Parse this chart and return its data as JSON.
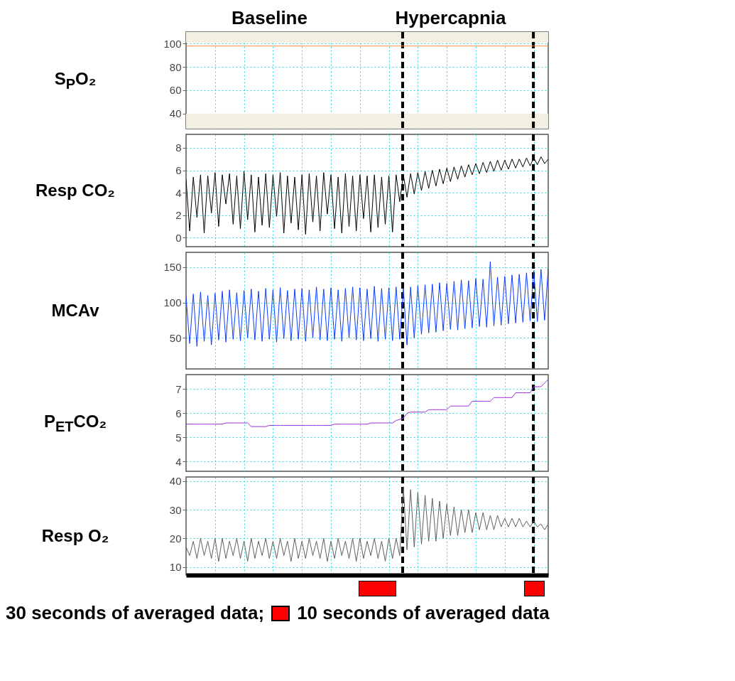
{
  "chart_data": [
    {
      "type": "line",
      "ylabel": "S$_{P}$O₂",
      "annotations": [
        "Baseline",
        "Hypercapnia"
      ],
      "categories": [
        null,
        null,
        null,
        null,
        null,
        null,
        null,
        null,
        null,
        null,
        null,
        null,
        null,
        null,
        null,
        null,
        null,
        null,
        null,
        null,
        null,
        null,
        null,
        null,
        null,
        null,
        null,
        null,
        null,
        null,
        null,
        null,
        null,
        null,
        null,
        null,
        null,
        null,
        null,
        null,
        null,
        null,
        null,
        null,
        null,
        null,
        null,
        null,
        null,
        null,
        null,
        null,
        null,
        null,
        null,
        null,
        null,
        null,
        null,
        null,
        null,
        null,
        null,
        null,
        null,
        null,
        null,
        null,
        null,
        null,
        null,
        null,
        null,
        null,
        null,
        null,
        null,
        null,
        null,
        null,
        null,
        null,
        null,
        null,
        null,
        null,
        null,
        null,
        null,
        null,
        null,
        null,
        null,
        null,
        null,
        null,
        null,
        null,
        null,
        null,
        null
      ],
      "series": [
        {
          "color": "#ff8c40",
          "values": [
            98,
            98,
            98,
            98,
            98,
            98,
            98,
            98,
            98,
            98,
            98,
            98,
            98,
            98,
            98,
            98,
            98,
            98,
            98,
            98,
            98,
            98,
            98,
            98,
            98,
            98,
            98,
            98,
            98,
            98,
            98,
            98,
            98,
            98,
            98,
            98,
            98,
            98,
            98,
            98,
            98,
            98,
            98,
            98,
            98,
            98,
            98,
            98,
            98,
            98,
            98,
            98,
            98,
            98,
            98,
            98,
            98,
            98,
            98,
            98,
            98,
            98,
            98,
            98,
            98,
            98,
            98,
            98,
            98,
            98,
            98,
            98,
            98,
            98,
            98,
            98,
            98,
            98,
            98,
            98,
            98,
            98,
            98,
            98,
            98,
            98,
            98,
            98,
            98,
            98,
            98,
            98,
            98,
            98,
            98,
            98,
            98,
            98,
            98,
            98,
            98
          ]
        }
      ],
      "ylim": [
        27,
        110
      ],
      "yticks": [
        40,
        60,
        80,
        100
      ],
      "grid": true,
      "tick_labels": "y",
      "bands": [
        {
          "axis": "y",
          "from": 101,
          "to": 110,
          "color": "#f3efe2"
        },
        {
          "axis": "y",
          "from": 27,
          "to": 40,
          "color": "#f3efe2"
        }
      ]
    },
    {
      "type": "line",
      "ylabel": "Resp CO₂",
      "categories": [
        null,
        null,
        null,
        null,
        null,
        null,
        null,
        null,
        null,
        null,
        null,
        null,
        null,
        null,
        null,
        null,
        null,
        null,
        null,
        null,
        null,
        null,
        null,
        null,
        null,
        null,
        null,
        null,
        null,
        null,
        null,
        null,
        null,
        null,
        null,
        null,
        null,
        null,
        null,
        null,
        null,
        null,
        null,
        null,
        null,
        null,
        null,
        null,
        null,
        null,
        null,
        null,
        null,
        null,
        null,
        null,
        null,
        null,
        null,
        null,
        null,
        null,
        null,
        null,
        null,
        null,
        null,
        null,
        null,
        null,
        null,
        null,
        null,
        null,
        null,
        null,
        null,
        null,
        null,
        null,
        null,
        null,
        null,
        null,
        null,
        null,
        null,
        null,
        null,
        null,
        null,
        null,
        null,
        null,
        null,
        null,
        null,
        null,
        null,
        null,
        null
      ],
      "series": [
        {
          "color": "#000000",
          "values": [
            5.2,
            0.6,
            5.4,
            1.8,
            5.6,
            0.4,
            5.5,
            2.2,
            5.8,
            1.0,
            5.6,
            3.0,
            5.7,
            1.2,
            5.5,
            0.8,
            5.9,
            1.6,
            5.6,
            0.5,
            5.4,
            1.1,
            5.7,
            0.9,
            5.6,
            1.9,
            5.8,
            0.4,
            5.5,
            1.3,
            5.4,
            0.7,
            5.6,
            0.3,
            5.7,
            1.4,
            5.5,
            0.6,
            5.8,
            2.1,
            5.6,
            0.8,
            5.4,
            0.4,
            5.7,
            1.0,
            5.5,
            0.6,
            5.6,
            1.7,
            5.5,
            0.5,
            5.6,
            0.9,
            5.4,
            1.2,
            5.5,
            0.5,
            5.6,
            3.2,
            5.6,
            3.6,
            5.7,
            3.9,
            5.8,
            4.2,
            5.9,
            4.4,
            6.0,
            4.6,
            6.1,
            4.8,
            6.2,
            5.0,
            6.3,
            5.2,
            6.4,
            5.4,
            6.5,
            5.6,
            6.6,
            5.7,
            6.7,
            5.8,
            6.8,
            5.9,
            6.9,
            6.0,
            6.9,
            6.1,
            7.0,
            6.2,
            7.0,
            6.3,
            7.1,
            6.4,
            7.1,
            6.5,
            7.2,
            6.6,
            7.0
          ]
        }
      ],
      "ylim": [
        -0.8,
        9.2
      ],
      "yticks": [
        0,
        2,
        4,
        6,
        8
      ],
      "grid": true,
      "tick_labels": "y"
    },
    {
      "type": "line",
      "ylabel": "MCAv",
      "categories": [
        null,
        null,
        null,
        null,
        null,
        null,
        null,
        null,
        null,
        null,
        null,
        null,
        null,
        null,
        null,
        null,
        null,
        null,
        null,
        null,
        null,
        null,
        null,
        null,
        null,
        null,
        null,
        null,
        null,
        null,
        null,
        null,
        null,
        null,
        null,
        null,
        null,
        null,
        null,
        null,
        null,
        null,
        null,
        null,
        null,
        null,
        null,
        null,
        null,
        null,
        null,
        null,
        null,
        null,
        null,
        null,
        null,
        null,
        null,
        null,
        null,
        null,
        null,
        null,
        null,
        null,
        null,
        null,
        null,
        null,
        null,
        null,
        null,
        null,
        null,
        null,
        null,
        null,
        null,
        null,
        null,
        null,
        null,
        null,
        null,
        null,
        null,
        null,
        null,
        null,
        null,
        null,
        null,
        null,
        null,
        null,
        null,
        null,
        null,
        null,
        null
      ],
      "series": [
        {
          "color": "#0a3cff",
          "values": [
            108,
            42,
            112,
            38,
            115,
            45,
            110,
            40,
            113,
            47,
            116,
            44,
            118,
            48,
            114,
            46,
            117,
            50,
            119,
            47,
            116,
            45,
            120,
            48,
            118,
            44,
            121,
            49,
            117,
            46,
            119,
            48,
            120,
            45,
            118,
            50,
            122,
            47,
            119,
            46,
            121,
            48,
            118,
            45,
            120,
            50,
            122,
            47,
            121,
            46,
            119,
            49,
            123,
            45,
            120,
            48,
            121,
            46,
            122,
            48,
            120,
            40,
            122,
            50,
            124,
            55,
            125,
            57,
            126,
            58,
            128,
            60,
            127,
            62,
            130,
            61,
            132,
            63,
            131,
            64,
            134,
            66,
            133,
            65,
            158,
            67,
            136,
            68,
            137,
            70,
            139,
            71,
            140,
            72,
            142,
            74,
            145,
            73,
            147,
            75,
            148
          ]
        }
      ],
      "ylim": [
        6,
        171
      ],
      "yticks": [
        50,
        100,
        150
      ],
      "grid": true,
      "tick_labels": "y"
    },
    {
      "type": "line",
      "ylabel": "P$_{ET}$CO₂",
      "categories": [
        null,
        null,
        null,
        null,
        null,
        null,
        null,
        null,
        null,
        null,
        null,
        null,
        null,
        null,
        null,
        null,
        null,
        null,
        null,
        null,
        null,
        null,
        null,
        null,
        null,
        null,
        null,
        null,
        null,
        null,
        null,
        null,
        null,
        null,
        null,
        null,
        null,
        null,
        null,
        null,
        null,
        null,
        null,
        null,
        null,
        null,
        null,
        null,
        null,
        null,
        null,
        null,
        null,
        null,
        null,
        null,
        null,
        null,
        null,
        null,
        null,
        null,
        null,
        null,
        null,
        null,
        null,
        null,
        null,
        null,
        null,
        null,
        null,
        null,
        null,
        null,
        null,
        null,
        null,
        null,
        null,
        null,
        null,
        null,
        null,
        null,
        null,
        null,
        null,
        null,
        null,
        null,
        null,
        null,
        null,
        null,
        null,
        null,
        null,
        null,
        null
      ],
      "series": [
        {
          "color": "#9b30d9",
          "values": [
            5.55,
            5.55,
            5.55,
            5.55,
            5.55,
            5.55,
            5.55,
            5.55,
            5.55,
            5.55,
            5.55,
            5.6,
            5.6,
            5.6,
            5.6,
            5.6,
            5.6,
            5.6,
            5.45,
            5.45,
            5.45,
            5.45,
            5.45,
            5.5,
            5.5,
            5.5,
            5.5,
            5.5,
            5.5,
            5.5,
            5.5,
            5.5,
            5.5,
            5.5,
            5.5,
            5.5,
            5.5,
            5.5,
            5.5,
            5.5,
            5.5,
            5.55,
            5.55,
            5.55,
            5.55,
            5.55,
            5.55,
            5.55,
            5.55,
            5.55,
            5.55,
            5.6,
            5.6,
            5.6,
            5.6,
            5.6,
            5.6,
            5.6,
            5.7,
            5.75,
            5.8,
            6.0,
            6.05,
            6.05,
            6.05,
            6.05,
            6.05,
            6.15,
            6.15,
            6.15,
            6.15,
            6.15,
            6.15,
            6.3,
            6.3,
            6.3,
            6.3,
            6.3,
            6.3,
            6.5,
            6.5,
            6.5,
            6.5,
            6.5,
            6.5,
            6.65,
            6.65,
            6.65,
            6.65,
            6.65,
            6.65,
            6.85,
            6.85,
            6.85,
            6.85,
            6.85,
            7.1,
            7.1,
            7.1,
            7.25,
            7.4
          ]
        }
      ],
      "ylim": [
        3.6,
        7.6
      ],
      "yticks": [
        4,
        5,
        6,
        7
      ],
      "grid": true,
      "tick_labels": "y"
    },
    {
      "type": "line",
      "ylabel": "Resp O₂",
      "annotations": [
        "30 seconds of averaged data;",
        "10 seconds of averaged data"
      ],
      "categories": [
        null,
        null,
        null,
        null,
        null,
        null,
        null,
        null,
        null,
        null,
        null,
        null,
        null,
        null,
        null,
        null,
        null,
        null,
        null,
        null,
        null,
        null,
        null,
        null,
        null,
        null,
        null,
        null,
        null,
        null,
        null,
        null,
        null,
        null,
        null,
        null,
        null,
        null,
        null,
        null,
        null,
        null,
        null,
        null,
        null,
        null,
        null,
        null,
        null,
        null,
        null,
        null,
        null,
        null,
        null,
        null,
        null,
        null,
        null,
        null,
        null,
        null,
        null,
        null,
        null,
        null,
        null,
        null,
        null,
        null,
        null,
        null,
        null,
        null,
        null,
        null,
        null,
        null,
        null,
        null,
        null,
        null,
        null,
        null,
        null,
        null,
        null,
        null,
        null,
        null,
        null,
        null,
        null,
        null,
        null,
        null,
        null,
        null,
        null,
        null,
        null
      ],
      "series": [
        {
          "color": "#606060",
          "values": [
            17,
            14,
            19,
            13,
            20,
            14,
            19,
            13,
            20,
            12,
            20,
            13,
            19,
            14,
            20,
            13,
            19,
            12,
            20,
            13,
            19,
            14,
            20,
            13,
            19,
            13,
            20,
            14,
            19,
            12,
            20,
            13,
            19,
            13,
            20,
            14,
            19,
            13,
            20,
            12,
            19,
            13,
            20,
            14,
            19,
            13,
            20,
            12,
            20,
            13,
            19,
            14,
            20,
            13,
            19,
            12,
            20,
            13,
            20,
            14,
            38,
            16,
            37,
            17,
            36,
            18,
            35,
            19,
            34,
            19,
            33,
            20,
            32,
            21,
            31,
            21,
            30,
            22,
            30,
            22,
            29,
            23,
            29,
            23,
            28,
            23,
            28,
            24,
            27,
            24,
            27,
            24,
            27,
            24,
            26,
            24,
            26,
            24,
            25,
            23,
            25
          ]
        }
      ],
      "ylim": [
        7.2,
        41.4
      ],
      "yticks": [
        10,
        20,
        30,
        40
      ],
      "grid": true,
      "tick_labels": "y"
    }
  ]
}
